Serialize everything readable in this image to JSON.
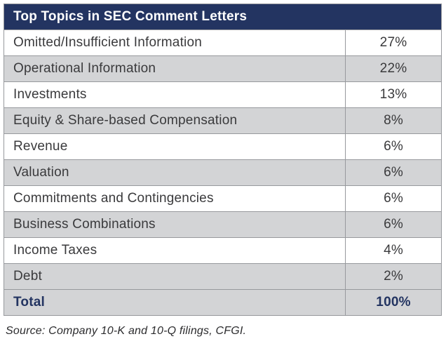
{
  "chart_data": {
    "type": "table",
    "title": "Top Topics in SEC Comment Letters",
    "rows": [
      {
        "topic": "Omitted/Insufficient Information",
        "value": "27%"
      },
      {
        "topic": "Operational Information",
        "value": "22%"
      },
      {
        "topic": "Investments",
        "value": "13%"
      },
      {
        "topic": "Equity & Share-based Compensation",
        "value": "8%"
      },
      {
        "topic": "Revenue",
        "value": "6%"
      },
      {
        "topic": "Valuation",
        "value": "6%"
      },
      {
        "topic": "Commitments and Contingencies",
        "value": "6%"
      },
      {
        "topic": "Business Combinations",
        "value": "6%"
      },
      {
        "topic": "Income Taxes",
        "value": "4%"
      },
      {
        "topic": "Debt",
        "value": "2%"
      }
    ],
    "values_numeric": [
      27,
      22,
      13,
      8,
      6,
      6,
      6,
      6,
      4,
      2
    ],
    "total": {
      "topic": "Total",
      "value": "100%"
    },
    "total_numeric": 100
  },
  "source": "Source: Company 10-K and 10-Q filings, CFGI.",
  "colors": {
    "header_bg": "#233461",
    "row_alt_bg": "#d3d4d6",
    "row_bg": "#ffffff",
    "border": "#97999d",
    "text": "#3a3a3c",
    "total_text": "#233461"
  }
}
